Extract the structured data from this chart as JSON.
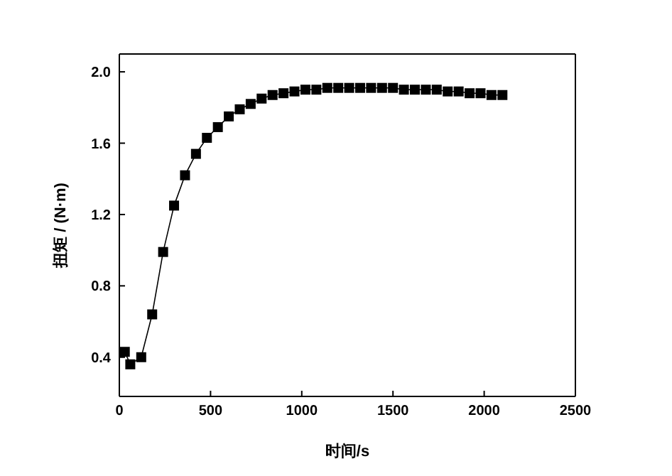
{
  "chart_data": {
    "type": "line",
    "xlabel": "时间/s",
    "ylabel": "扭矩 / (N·m)",
    "x": [
      30,
      60,
      120,
      180,
      240,
      300,
      360,
      420,
      480,
      540,
      600,
      660,
      720,
      780,
      840,
      900,
      960,
      1020,
      1080,
      1140,
      1200,
      1260,
      1320,
      1380,
      1440,
      1500,
      1560,
      1620,
      1680,
      1740,
      1800,
      1860,
      1920,
      1980,
      2040,
      2100
    ],
    "series": [
      {
        "color": "#000000",
        "values": [
          0.43,
          0.36,
          0.4,
          0.64,
          0.99,
          1.25,
          1.42,
          1.54,
          1.63,
          1.69,
          1.75,
          1.79,
          1.82,
          1.85,
          1.87,
          1.88,
          1.89,
          1.9,
          1.9,
          1.91,
          1.91,
          1.91,
          1.91,
          1.91,
          1.91,
          1.91,
          1.9,
          1.9,
          1.9,
          1.9,
          1.89,
          1.89,
          1.88,
          1.88,
          1.87,
          1.87
        ]
      }
    ],
    "xlim": [
      0,
      2500
    ],
    "xticks": [
      0,
      500,
      1000,
      1500,
      2000,
      2500
    ],
    "ylim": [
      0.18,
      2.1
    ],
    "yticks": [
      0.4,
      0.8,
      1.2,
      1.6,
      {
        "value": 2,
        "label": "2.0"
      }
    ],
    "marker": "square",
    "line_style": "solid",
    "grid": false,
    "legend": false
  }
}
